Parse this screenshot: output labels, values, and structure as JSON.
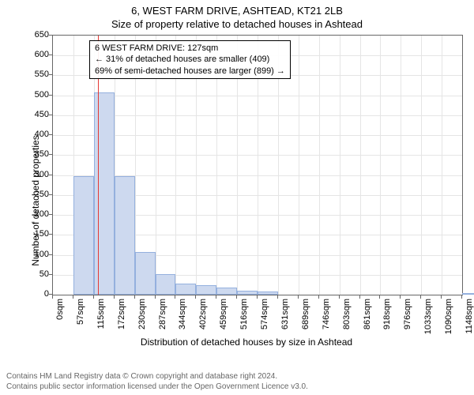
{
  "title": {
    "main": "6, WEST FARM DRIVE, ASHTEAD, KT21 2LB",
    "sub": "Size of property relative to detached houses in Ashtead"
  },
  "chart": {
    "type": "histogram",
    "y_label": "Number of detached properties",
    "x_label": "Distribution of detached houses by size in Ashtead",
    "ylim": [
      0,
      650
    ],
    "y_ticks": [
      0,
      50,
      100,
      150,
      200,
      250,
      300,
      350,
      400,
      450,
      500,
      550,
      600,
      650
    ],
    "x_ticks": [
      "0sqm",
      "57sqm",
      "115sqm",
      "172sqm",
      "230sqm",
      "287sqm",
      "344sqm",
      "402sqm",
      "459sqm",
      "516sqm",
      "574sqm",
      "631sqm",
      "689sqm",
      "746sqm",
      "803sqm",
      "861sqm",
      "918sqm",
      "976sqm",
      "1033sqm",
      "1090sqm",
      "1148sqm"
    ],
    "bars": [
      {
        "x": 57,
        "value": 298
      },
      {
        "x": 115,
        "value": 508
      },
      {
        "x": 172,
        "value": 298
      },
      {
        "x": 230,
        "value": 108
      },
      {
        "x": 287,
        "value": 52
      },
      {
        "x": 344,
        "value": 28
      },
      {
        "x": 402,
        "value": 24
      },
      {
        "x": 459,
        "value": 18
      },
      {
        "x": 516,
        "value": 10
      },
      {
        "x": 574,
        "value": 8
      },
      {
        "x": 1148,
        "value": 4
      }
    ],
    "bar_fill_color": "#cdd9ef",
    "bar_border_color": "#94b0de",
    "grid_color": "#e5e5e5",
    "axis_color": "#666666",
    "marker": {
      "value_sqm": 127,
      "color": "#e53935"
    }
  },
  "info_box": {
    "line1": "6 WEST FARM DRIVE: 127sqm",
    "line2": "← 31% of detached houses are smaller (409)",
    "line3": "69% of semi-detached houses are larger (899) →"
  },
  "footer": {
    "line1": "Contains HM Land Registry data © Crown copyright and database right 2024.",
    "line2": "Contains public sector information licensed under the Open Government Licence v3.0."
  }
}
